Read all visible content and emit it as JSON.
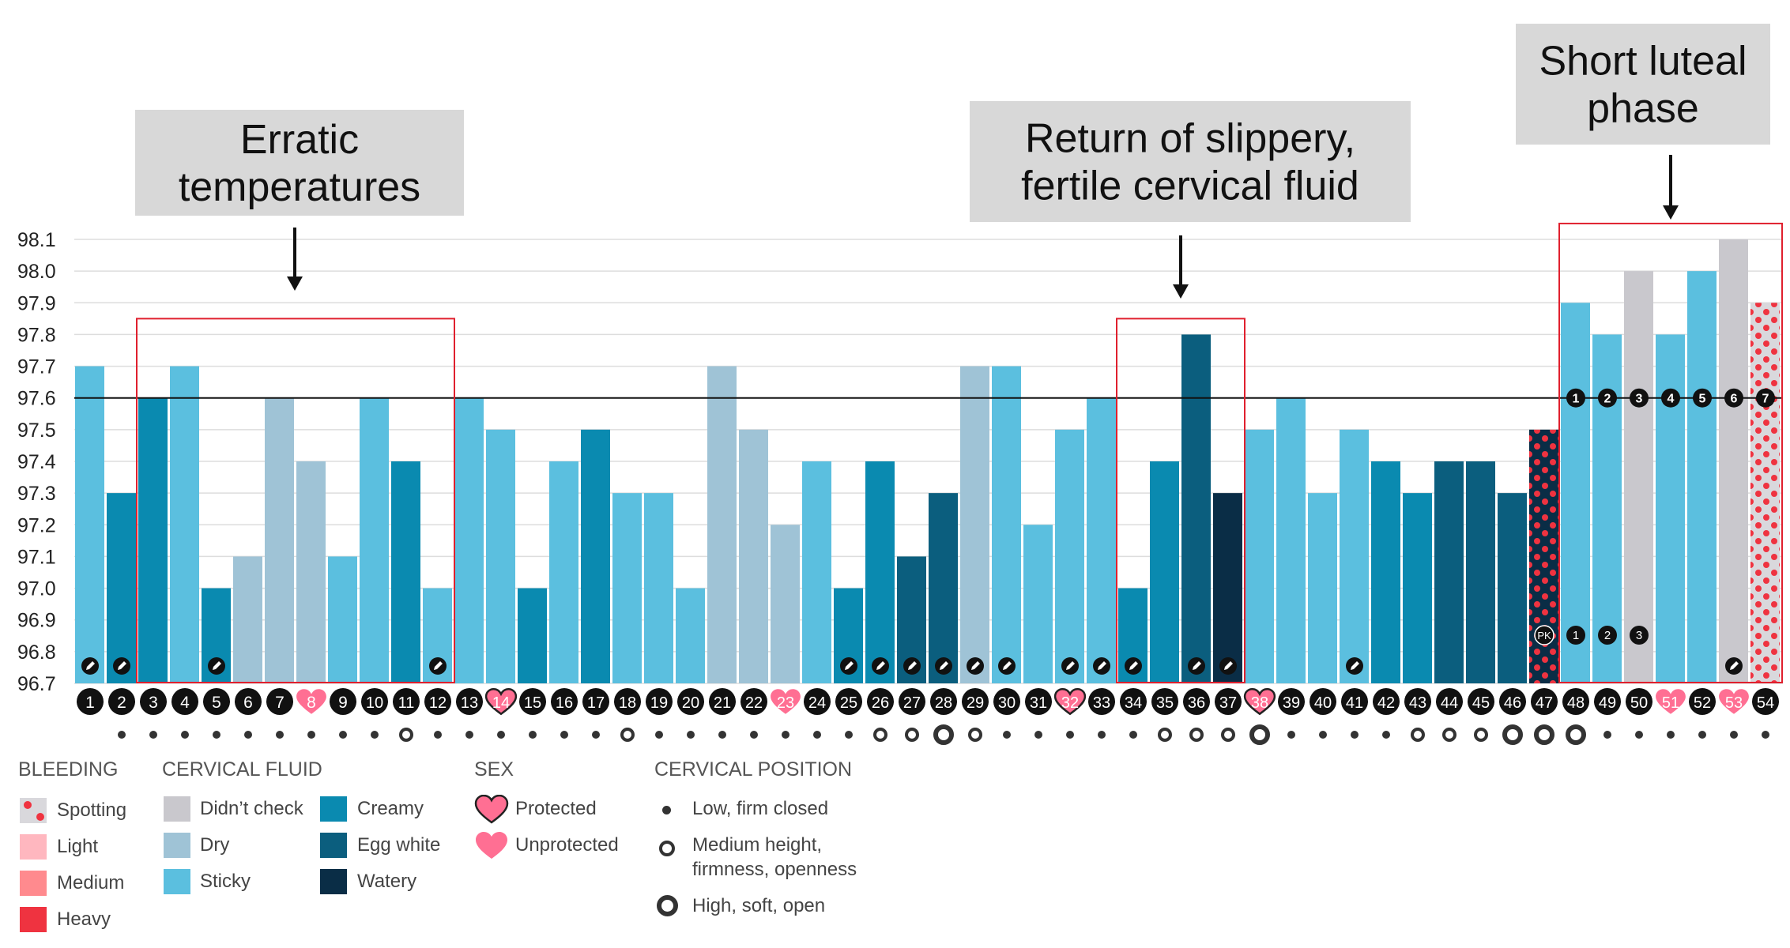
{
  "chart_data": {
    "type": "bar",
    "title": "",
    "xlabel": "",
    "ylabel": "",
    "ylim": [
      96.7,
      98.15
    ],
    "y_ticks": [
      "98.1",
      "98.0",
      "97.9",
      "97.8",
      "97.7",
      "97.6",
      "97.5",
      "97.4",
      "97.3",
      "97.2",
      "97.1",
      "97.0",
      "96.9",
      "96.8",
      "96.7"
    ],
    "coverline": 97.6,
    "categories": [
      1,
      2,
      3,
      4,
      5,
      6,
      7,
      8,
      9,
      10,
      11,
      12,
      13,
      14,
      15,
      16,
      17,
      18,
      19,
      20,
      21,
      22,
      23,
      24,
      25,
      26,
      27,
      28,
      29,
      30,
      31,
      32,
      33,
      34,
      35,
      36,
      37,
      38,
      39,
      40,
      41,
      42,
      43,
      44,
      45,
      46,
      47,
      48,
      49,
      50,
      51,
      52,
      53,
      54
    ],
    "values": [
      97.7,
      97.3,
      97.6,
      97.7,
      97.0,
      97.1,
      97.6,
      97.4,
      97.1,
      97.6,
      97.4,
      97.0,
      97.6,
      97.5,
      97.0,
      97.4,
      97.5,
      97.3,
      97.3,
      97.0,
      97.7,
      97.5,
      97.2,
      97.4,
      97.0,
      97.4,
      97.1,
      97.3,
      97.7,
      97.7,
      97.2,
      97.5,
      97.6,
      97.0,
      97.4,
      97.8,
      97.3,
      97.5,
      97.6,
      97.3,
      97.5,
      97.4,
      97.3,
      97.4,
      97.4,
      97.3,
      97.5,
      97.9,
      97.8,
      98.0,
      97.8,
      98.0,
      98.1,
      97.9
    ],
    "fluid": [
      "sticky",
      "creamy",
      "creamy",
      "sticky",
      "creamy",
      "dry",
      "dry",
      "dry",
      "sticky",
      "sticky",
      "creamy",
      "sticky",
      "sticky",
      "sticky",
      "creamy",
      "sticky",
      "creamy",
      "sticky",
      "sticky",
      "sticky",
      "dry",
      "dry",
      "dry",
      "sticky",
      "creamy",
      "creamy",
      "eggwhite",
      "eggwhite",
      "dry",
      "sticky",
      "sticky",
      "sticky",
      "sticky",
      "creamy",
      "creamy",
      "eggwhite",
      "watery",
      "sticky",
      "sticky",
      "sticky",
      "sticky",
      "creamy",
      "creamy",
      "eggwhite",
      "eggwhite",
      "eggwhite",
      "heavy",
      "sticky",
      "sticky",
      "nocheck",
      "sticky",
      "sticky",
      "nocheck",
      "spotting"
    ],
    "sex": {
      "8": "unprotected",
      "14": "protected",
      "23": "unprotected",
      "32": "protected",
      "38": "protected",
      "51": "unprotected",
      "53": "unprotected"
    },
    "notes_days": [
      1,
      2,
      5,
      12,
      25,
      26,
      27,
      28,
      29,
      30,
      32,
      33,
      34,
      36,
      37,
      41,
      53
    ],
    "cervical_position": [
      "none",
      "low",
      "low",
      "low",
      "low",
      "low",
      "low",
      "low",
      "low",
      "low",
      "medium",
      "low",
      "low",
      "low",
      "low",
      "low",
      "low",
      "medium",
      "low",
      "low",
      "low",
      "low",
      "low",
      "low",
      "low",
      "medium",
      "medium",
      "high",
      "medium",
      "low",
      "low",
      "low",
      "low",
      "low",
      "medium",
      "medium",
      "medium",
      "high",
      "low",
      "low",
      "low",
      "low",
      "medium",
      "medium",
      "medium",
      "high",
      "high",
      "high",
      "low",
      "low",
      "low",
      "low",
      "low",
      "low"
    ],
    "luteal_count": [
      {
        "day": 48,
        "label": "1"
      },
      {
        "day": 49,
        "label": "2"
      },
      {
        "day": 50,
        "label": "3"
      },
      {
        "day": 51,
        "label": "4"
      },
      {
        "day": 52,
        "label": "5"
      },
      {
        "day": 53,
        "label": "6"
      },
      {
        "day": 54,
        "label": "7"
      }
    ],
    "peak_markers": [
      {
        "day": 47,
        "label": "PK"
      },
      {
        "day": 48,
        "label": "1"
      },
      {
        "day": 49,
        "label": "2"
      },
      {
        "day": 50,
        "label": "3"
      }
    ],
    "annotations": [
      {
        "text": [
          "Erratic",
          "temperatures"
        ],
        "from_day": 3,
        "to_day": 12,
        "box_top": 97.85
      },
      {
        "text": [
          "Return of slippery,",
          "fertile cervical fluid"
        ],
        "from_day": 34,
        "to_day": 37,
        "box_top": 97.85
      },
      {
        "text": [
          "Short luteal",
          "phase"
        ],
        "from_day": 48,
        "to_day": 54,
        "box_top": 98.15
      }
    ]
  },
  "colors": {
    "nocheck": "#c9c8cd",
    "dry": "#9fc3d6",
    "sticky": "#5bbfdf",
    "creamy": "#0a8ab0",
    "eggwhite": "#0b5e7e",
    "watery": "#0a2d46",
    "spotting": "#d9d8dc",
    "light": "#ffb7bf",
    "medium": "#ff8a8e",
    "heavy": "#ef3340",
    "heart": "#ff6f93",
    "annotation_box": "#d8d8d8",
    "highlight": "#e0202e",
    "dot": "#333333"
  },
  "legend": {
    "bleeding": {
      "title": "BLEEDING",
      "items": [
        "Spotting",
        "Light",
        "Medium",
        "Heavy"
      ]
    },
    "fluid": {
      "title": "CERVICAL FLUID",
      "items": [
        "Didn’t check",
        "Dry",
        "Sticky",
        "Creamy",
        "Egg white",
        "Watery"
      ]
    },
    "sex": {
      "title": "SEX",
      "items": [
        "Protected",
        "Unprotected"
      ]
    },
    "position": {
      "title": "CERVICAL POSITION",
      "items": [
        "Low, firm closed",
        "Medium height,",
        "firmness, openness",
        "High, soft, open"
      ]
    }
  }
}
